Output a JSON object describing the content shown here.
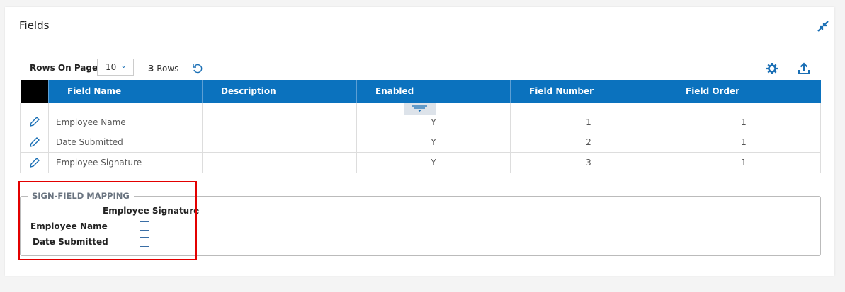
{
  "panel": {
    "title": "Fields",
    "collapse_icon": "collapse-arrows-icon"
  },
  "toolbar": {
    "rows_on_page_label": "Rows On Page",
    "rows_on_page_value": "10",
    "row_count": "3",
    "row_count_label": "Rows"
  },
  "table": {
    "headers": [
      "Field Name",
      "Description",
      "Enabled",
      "Field Number",
      "Field Order"
    ],
    "rows": [
      {
        "field_name": "Employee Name",
        "description": "",
        "enabled": "Y",
        "field_number": "1",
        "field_order": "1"
      },
      {
        "field_name": "Date Submitted",
        "description": "",
        "enabled": "Y",
        "field_number": "2",
        "field_order": "1"
      },
      {
        "field_name": "Employee Signature",
        "description": "",
        "enabled": "Y",
        "field_number": "3",
        "field_order": "1"
      }
    ]
  },
  "mapping": {
    "legend": "SIGN-FIELD MAPPING",
    "column": "Employee Signature",
    "rows": [
      {
        "label": "Employee Name",
        "checked": false
      },
      {
        "label": "Date Submitted",
        "checked": false
      }
    ]
  },
  "colors": {
    "accent": "#0b72be",
    "highlight": "#e30000"
  }
}
